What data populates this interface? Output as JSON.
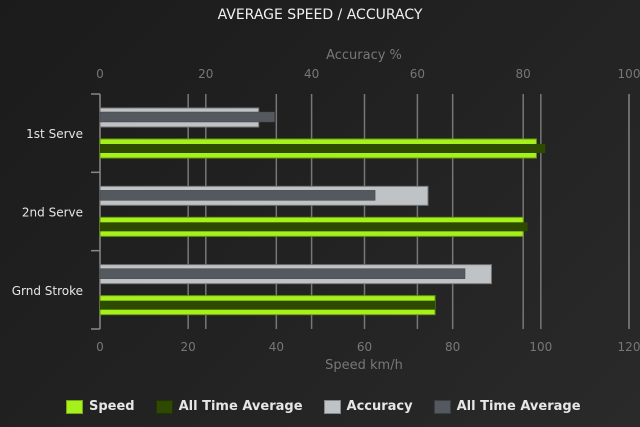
{
  "chart_data": {
    "type": "bar",
    "orientation": "horizontal",
    "title": "AVERAGE SPEED / ACCURACY",
    "categories": [
      "1st Serve",
      "2nd Serve",
      "Grnd Stroke"
    ],
    "x_top_axis": {
      "label": "Accuracy %",
      "range": [
        0,
        100
      ],
      "ticks": [
        0,
        20,
        40,
        60,
        80,
        100
      ]
    },
    "x_bottom_axis": {
      "label": "Speed km/h",
      "range": [
        0,
        120
      ],
      "ticks": [
        0,
        20,
        40,
        60,
        80,
        100,
        120
      ]
    },
    "grid": true,
    "legend_position": "bottom",
    "series": [
      {
        "name": "Speed",
        "axis": "bottom",
        "color": "#a6f01c",
        "values": [
          99,
          96,
          76
        ]
      },
      {
        "name": "All Time Average",
        "axis": "bottom",
        "color": "#2e4a00",
        "values": [
          101,
          97,
          76
        ]
      },
      {
        "name": "Accuracy",
        "axis": "top",
        "color": "#bfc3c6",
        "values": [
          30,
          62,
          74
        ]
      },
      {
        "name": "All Time Average",
        "axis": "top",
        "color": "#545960",
        "values": [
          33,
          52,
          69
        ]
      }
    ]
  }
}
